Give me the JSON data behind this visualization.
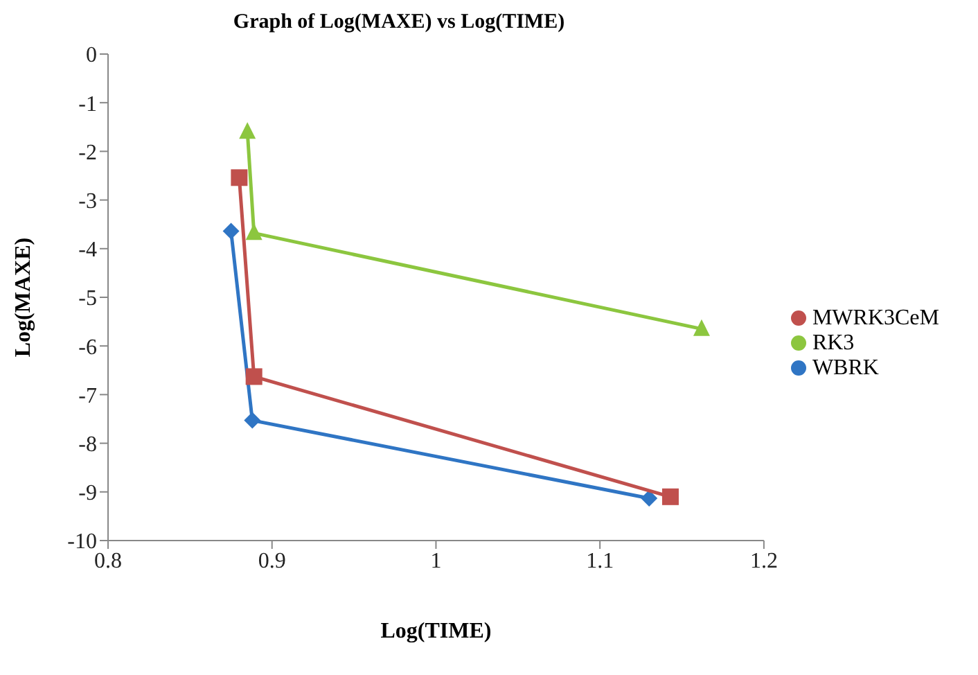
{
  "chart_data": {
    "type": "line",
    "title": "Graph of Log(MAXE) vs Log(TIME)",
    "xlabel": "Log(TIME)",
    "ylabel": "Log(MAXE)",
    "xlim": [
      0.8,
      1.2
    ],
    "xticks": [
      0.8,
      0.9,
      1,
      1.1,
      1.2
    ],
    "ylim": [
      -10,
      0
    ],
    "yticks": [
      -10,
      -9,
      -8,
      -7,
      -6,
      -5,
      -4,
      -3,
      -2,
      -1,
      0
    ],
    "grid": false,
    "legend": "right",
    "series": [
      {
        "name": "WBRK",
        "color": "#2f75c4",
        "marker": "diamond",
        "x": [
          0.875,
          0.888,
          1.13
        ],
        "values": [
          -3.64,
          -7.53,
          -9.13
        ]
      },
      {
        "name": "MWRK3CeM",
        "color": "#c0504d",
        "marker": "square",
        "x": [
          0.88,
          0.889,
          1.143
        ],
        "values": [
          -2.54,
          -6.63,
          -9.1
        ]
      },
      {
        "name": "RK3",
        "color": "#8cc63f",
        "marker": "triangle",
        "x": [
          0.885,
          0.889,
          1.162
        ],
        "values": [
          -1.6,
          -3.68,
          -5.65
        ]
      }
    ]
  }
}
